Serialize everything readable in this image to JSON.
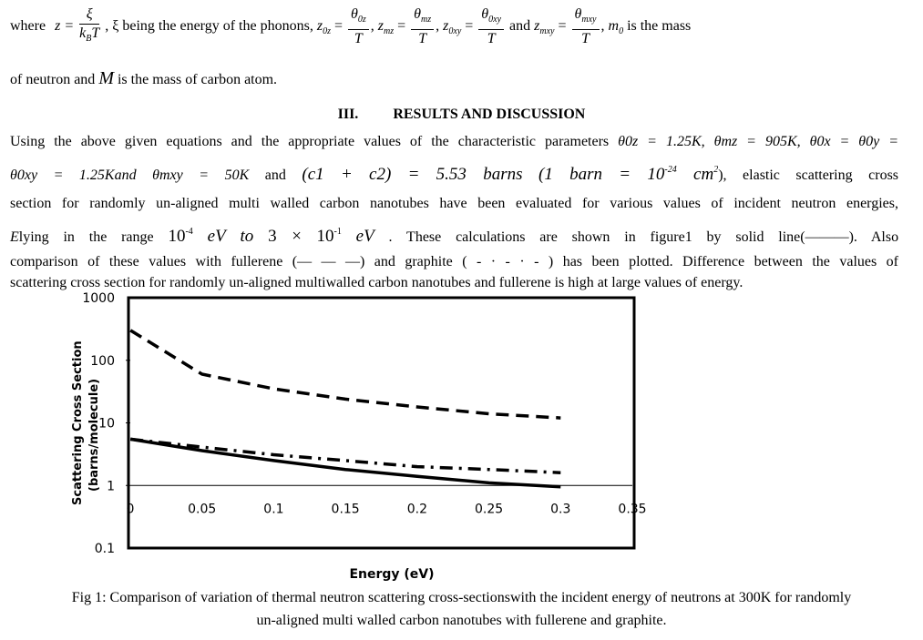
{
  "intro": {
    "where": "where",
    "z_eq": "z =",
    "xi": "ξ",
    "kbt": "k",
    "kbt_sub": "B",
    "kbt_T": "T",
    "xi_desc": "ξ being the energy of the phonons,",
    "z0z": "z",
    "z0z_sub": "0z",
    "theta0z": "θ",
    "theta0z_sub": "0z",
    "zmz": "z",
    "zmz_sub": "mz",
    "thetamz": "θ",
    "thetamz_sub": "mz",
    "z0xy": "z",
    "z0xy_sub": "0xy",
    "theta0xy": "θ",
    "theta0xy_sub": "0xy",
    "and": "and",
    "zmxy": "z",
    "zmxy_sub": "mxy",
    "thetamxy": "θ",
    "thetamxy_sub": "mxy",
    "T": "T",
    "m0": "m",
    "m0_sub": "0",
    "mass_text": "is the mass",
    "line2": "of neutron and",
    "M": "M",
    "line2_end": "is the mass of carbon atom."
  },
  "section": {
    "number": "III.",
    "title": "RESULTS AND DISCUSSION"
  },
  "paragraph": {
    "l1": "Using the above given equations and the appropriate values of the characteristic parameters",
    "l1_math": "θ0z = 1.25K, θmz = 905K, θ0x = θ0y =",
    "l2_math": "θ0xy = 1.25Kand  θmxy = 50K",
    "l2_and": "and",
    "l2_c": "(c1 + c2) = 5.53 barns",
    "l2_barn": "(1 barn  = 10",
    "l2_exp": "-24",
    "l2_cm": "cm",
    "l2_cm_exp": "2",
    "l2_end": "), elastic scattering cross",
    "l3": "section for randomly un-aligned multi walled carbon nanotubes have been evaluated for various values of incident neutron energies,",
    "l4_E": "E",
    "l4_a": "lying in the range",
    "l4_r1": "10",
    "l4_r1_exp": "-4",
    "l4_ev": "eV",
    "l4_to": "to",
    "l4_r2": "3 × 10",
    "l4_r2_exp": "-1",
    "l4_ev2": "eV",
    "l4_b": ". These calculations are shown in figure1 by solid line(———). Also",
    "l5": "comparison of these values with fullerene (— — —) and graphite ( - · - · - ) has been plotted. Difference between the values of",
    "l6": "scattering cross section for randomly un-aligned multiwalled carbon nanotubes and fullerene is high at large values of energy."
  },
  "chart_data": {
    "type": "line",
    "xlabel": "Energy (eV)",
    "ylabel": "Scattering Cross Section (barns/molecule)",
    "ylabel_line1": "Scattering Cross Section",
    "ylabel_line2": "(barns/molecule)",
    "xlim": [
      0,
      0.35
    ],
    "ylim": [
      0.1,
      1000
    ],
    "yscale": "log",
    "x_ticks": [
      "0",
      "0.05",
      "0.1",
      "0.15",
      "0.2",
      "0.25",
      "0.3",
      "0.35"
    ],
    "y_ticks": [
      "0.1",
      "1",
      "10",
      "100",
      "1000"
    ],
    "grid": false,
    "series": [
      {
        "style": "solid",
        "x": [
          0.0001,
          0.05,
          0.1,
          0.15,
          0.2,
          0.25,
          0.3
        ],
        "y": [
          5.5,
          3.6,
          2.5,
          1.8,
          1.4,
          1.1,
          0.95
        ]
      },
      {
        "style": "dashed",
        "x": [
          0.0001,
          0.05,
          0.1,
          0.15,
          0.2,
          0.25,
          0.3
        ],
        "y": [
          300,
          60,
          35,
          24,
          18,
          14,
          12
        ]
      },
      {
        "style": "dashdot",
        "x": [
          0.0001,
          0.05,
          0.1,
          0.15,
          0.2,
          0.25,
          0.3
        ],
        "y": [
          5.5,
          4.1,
          3.1,
          2.5,
          2.0,
          1.8,
          1.6
        ]
      }
    ]
  },
  "caption": {
    "l1": "Fig 1: Comparison of variation of thermal neutron scattering cross-sectionswith the incident energy of neutrons at 300K for randomly",
    "l2": "un-aligned multi walled carbon nanotubes with fullerene and graphite."
  }
}
